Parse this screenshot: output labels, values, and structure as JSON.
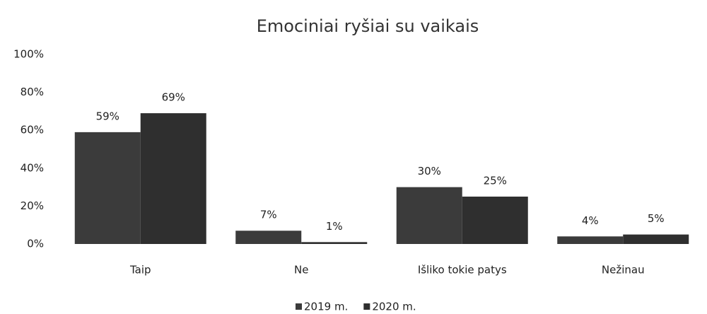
{
  "chart_data": {
    "type": "bar",
    "title": "Emociniai ryšiai su vaikais",
    "categories": [
      "Taip",
      "Ne",
      "Išliko tokie patys",
      "Nežinau"
    ],
    "series": [
      {
        "name": "2019 m.",
        "color": "#3b3b3b",
        "values": [
          59,
          7,
          30,
          4
        ],
        "value_labels": [
          "59%",
          "7%",
          "30%",
          "4%"
        ]
      },
      {
        "name": "2020 m.",
        "color": "#2f2f2f",
        "values": [
          69,
          1,
          25,
          5
        ],
        "value_labels": [
          "69%",
          "1%",
          "25%",
          "5%"
        ]
      }
    ],
    "ylim": [
      0,
      100
    ],
    "yticks": [
      {
        "value": 0,
        "label": "0%"
      },
      {
        "value": 20,
        "label": "20%"
      },
      {
        "value": 40,
        "label": "40%"
      },
      {
        "value": 60,
        "label": "60%"
      },
      {
        "value": 80,
        "label": "80%"
      },
      {
        "value": 100,
        "label": "100%"
      }
    ],
    "grid": false,
    "legend": "bottom"
  }
}
